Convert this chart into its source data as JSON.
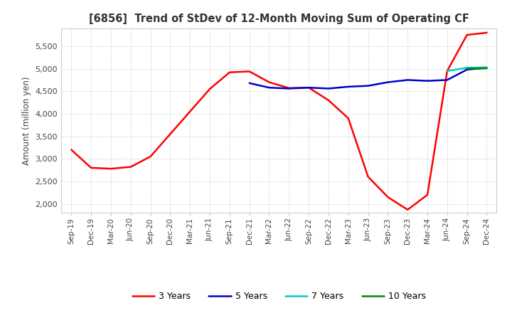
{
  "title": "[6856]  Trend of StDev of 12-Month Moving Sum of Operating CF",
  "ylabel": "Amount (million yen)",
  "background_color": "#ffffff",
  "plot_background": "#ffffff",
  "grid_color": "#aaaaaa",
  "ylim": [
    1800,
    5900
  ],
  "yticks": [
    2000,
    2500,
    3000,
    3500,
    4000,
    4500,
    5000,
    5500
  ],
  "x_labels": [
    "Sep-19",
    "Dec-19",
    "Mar-20",
    "Jun-20",
    "Sep-20",
    "Dec-20",
    "Mar-21",
    "Jun-21",
    "Sep-21",
    "Dec-21",
    "Mar-22",
    "Jun-22",
    "Sep-22",
    "Dec-22",
    "Mar-23",
    "Jun-23",
    "Sep-23",
    "Dec-23",
    "Mar-24",
    "Jun-24",
    "Sep-24",
    "Dec-24"
  ],
  "series": {
    "3 Years": {
      "color": "#ff0000",
      "linewidth": 1.8,
      "values": [
        3200,
        2800,
        2780,
        2820,
        3050,
        3550,
        4050,
        4550,
        4920,
        4940,
        4700,
        4570,
        4580,
        4300,
        3900,
        2600,
        2150,
        1870,
        2200,
        4950,
        5750,
        5800
      ]
    },
    "5 Years": {
      "color": "#0000cc",
      "linewidth": 1.8,
      "values": [
        null,
        null,
        null,
        null,
        null,
        null,
        null,
        null,
        null,
        4680,
        4580,
        4560,
        4580,
        4560,
        4600,
        4620,
        4700,
        4750,
        4730,
        4750,
        4980,
        5020
      ]
    },
    "7 Years": {
      "color": "#00cccc",
      "linewidth": 1.8,
      "values": [
        null,
        null,
        null,
        null,
        null,
        null,
        null,
        null,
        null,
        null,
        null,
        null,
        null,
        null,
        null,
        null,
        null,
        null,
        null,
        4950,
        5020,
        5030
      ]
    },
    "10 Years": {
      "color": "#008800",
      "linewidth": 1.8,
      "values": [
        null,
        null,
        null,
        null,
        null,
        null,
        null,
        null,
        null,
        null,
        null,
        null,
        null,
        null,
        null,
        null,
        null,
        null,
        null,
        null,
        5000,
        5010
      ]
    }
  }
}
